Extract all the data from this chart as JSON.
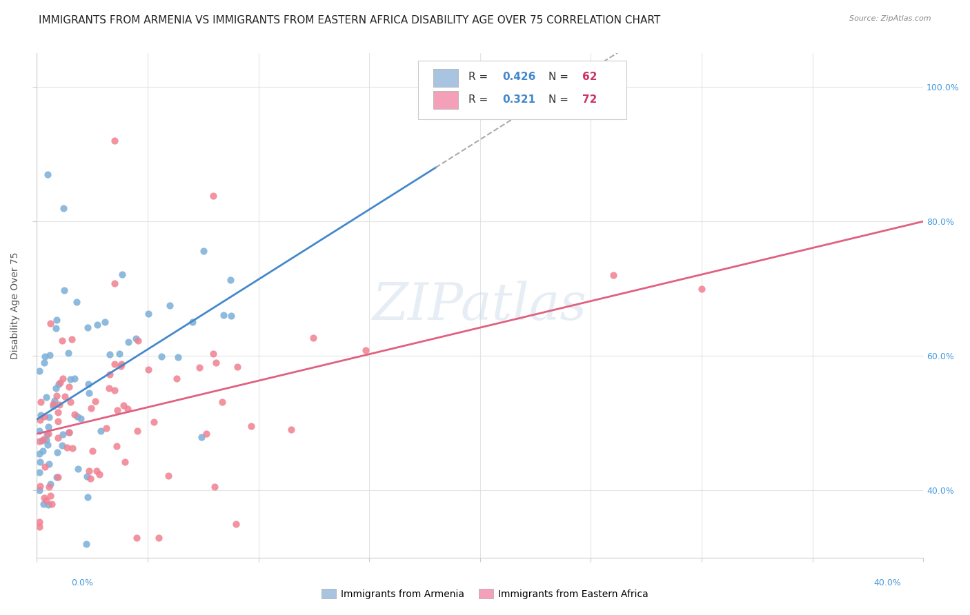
{
  "title": "IMMIGRANTS FROM ARMENIA VS IMMIGRANTS FROM EASTERN AFRICA DISABILITY AGE OVER 75 CORRELATION CHART",
  "source": "Source: ZipAtlas.com",
  "ylabel": "Disability Age Over 75",
  "background_color": "#ffffff",
  "series1_color": "#7ab0d8",
  "series2_color": "#f08090",
  "trend1_color": "#4488cc",
  "trend2_color": "#e06080",
  "trend_ext_color": "#aaaaaa",
  "xlim": [
    0.0,
    0.4
  ],
  "ylim": [
    0.3,
    1.05
  ],
  "grid_color": "#dddddd",
  "title_fontsize": 11,
  "axis_label_fontsize": 10,
  "tick_fontsize": 9,
  "r1": 0.426,
  "n1": 62,
  "r2": 0.321,
  "n2": 72
}
